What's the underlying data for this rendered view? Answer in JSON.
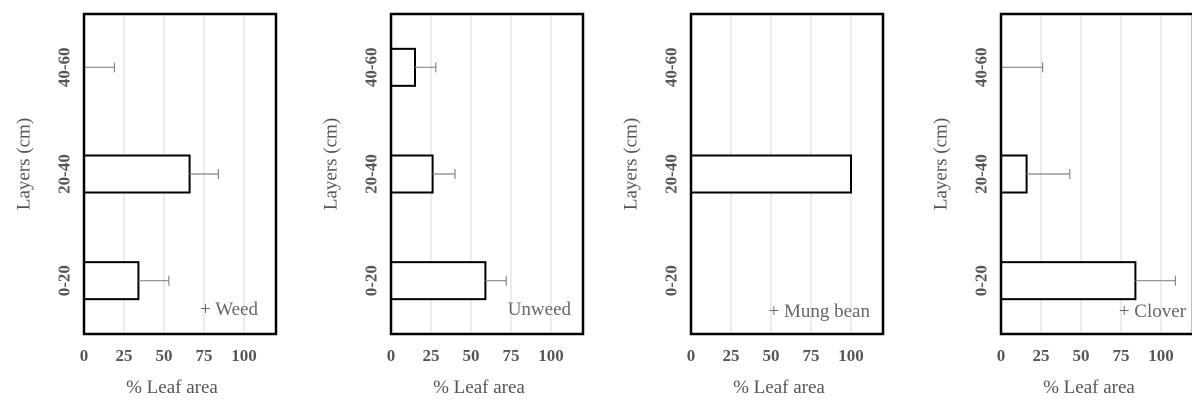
{
  "chart_data": [
    {
      "type": "bar",
      "orientation": "horizontal",
      "categories": [
        "0-20",
        "20-40",
        "40-60"
      ],
      "values": [
        34,
        66,
        0
      ],
      "errors": [
        19,
        18,
        19
      ],
      "xlabel": "% Leaf area",
      "ylabel": "Layers  (cm)",
      "xticks": [
        "0",
        "25",
        "50",
        "75",
        "100"
      ],
      "xlim": [
        0,
        120
      ],
      "annotation": "+ Weed",
      "grid": "vertical"
    },
    {
      "type": "bar",
      "orientation": "horizontal",
      "categories": [
        "0-20",
        "20-40",
        "40-60"
      ],
      "values": [
        59,
        26,
        15
      ],
      "errors": [
        13,
        14,
        13
      ],
      "xlabel": "% Leaf area",
      "ylabel": "Layers  (cm)",
      "xticks": [
        "0",
        "25",
        "50",
        "75",
        "100"
      ],
      "xlim": [
        0,
        120
      ],
      "annotation": "Unweed",
      "grid": "vertical"
    },
    {
      "type": "bar",
      "orientation": "horizontal",
      "categories": [
        "0-20",
        "20-40",
        "40-60"
      ],
      "values": [
        0,
        100,
        0
      ],
      "errors": [
        0,
        0,
        0
      ],
      "xlabel": "% Leaf area",
      "ylabel": "Layers  (cm)",
      "xticks": [
        "0",
        "25",
        "50",
        "75",
        "100"
      ],
      "xlim": [
        0,
        120
      ],
      "annotation": "+ Mung bean",
      "grid": "vertical"
    },
    {
      "type": "bar",
      "orientation": "horizontal",
      "categories": [
        "0-20",
        "20-40",
        "40-60"
      ],
      "values": [
        84,
        16,
        0
      ],
      "errors": [
        25,
        27,
        26
      ],
      "xlabel": "% Leaf area",
      "ylabel": "Layers  (cm)",
      "xticks": [
        "0",
        "25",
        "50",
        "75",
        "100"
      ],
      "xlim": [
        0,
        120
      ],
      "annotation": "+ Clover",
      "grid": "vertical"
    }
  ],
  "colors": {
    "bar_fill": "#ffffff",
    "bar_stroke": "#000000",
    "error_bar": "#888888",
    "grid": "#d9d9d9",
    "text": "#555555"
  }
}
